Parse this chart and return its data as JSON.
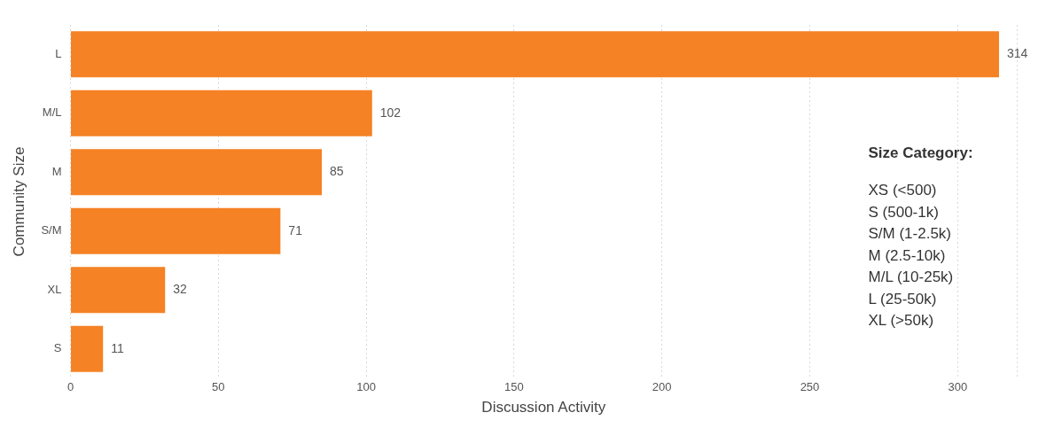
{
  "chart_data": {
    "type": "bar",
    "orientation": "horizontal",
    "xlabel": "Discussion Activity",
    "ylabel": "Community Size",
    "categories": [
      "L",
      "M/L",
      "M",
      "S/M",
      "XL",
      "S"
    ],
    "values": [
      314,
      102,
      85,
      71,
      32,
      11
    ],
    "color": "#f58225",
    "xlim": [
      0,
      320
    ],
    "xticks": [
      0,
      50,
      100,
      150,
      200,
      250,
      300,
      {
        "value": 320,
        "label": null
      }
    ],
    "grid": "x",
    "data_labels": true,
    "legend": false,
    "annotations": [
      "Size Category:",
      "XS (<500)",
      "S (500-1k)",
      "S/M (1-2.5k)",
      "M (2.5-10k)",
      "M/L (10-25k)",
      "L (25-50k)",
      "XL (>50k)"
    ]
  }
}
